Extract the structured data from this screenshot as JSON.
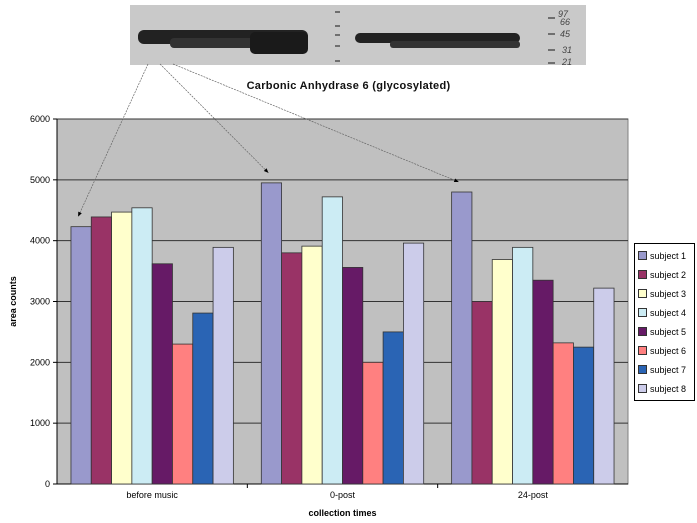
{
  "blot": {
    "marker_labels": [
      "97",
      "66",
      "45",
      "31",
      "21"
    ]
  },
  "chart_data": {
    "type": "bar",
    "title": "Carbonic Anhydrase 6 (glycosylated)",
    "xlabel": "collection times",
    "ylabel": "area counts",
    "ylim": [
      0,
      6000
    ],
    "yticks": [
      0,
      1000,
      2000,
      3000,
      4000,
      5000,
      6000
    ],
    "grid": true,
    "legend_position": "right",
    "categories": [
      "before music",
      "0-post",
      "24-post"
    ],
    "series": [
      {
        "name": "subject 1",
        "color": "#9999cc",
        "values": [
          4230,
          4950,
          4800
        ]
      },
      {
        "name": "subject 2",
        "color": "#993366",
        "values": [
          4390,
          3800,
          3000
        ]
      },
      {
        "name": "subject 3",
        "color": "#ffffcc",
        "values": [
          4470,
          3910,
          3690
        ]
      },
      {
        "name": "subject 4",
        "color": "#ccecf4",
        "values": [
          4540,
          4720,
          3890
        ]
      },
      {
        "name": "subject 5",
        "color": "#661a66",
        "values": [
          3620,
          3560,
          3350
        ]
      },
      {
        "name": "subject 6",
        "color": "#ff8080",
        "values": [
          2300,
          2000,
          2320
        ]
      },
      {
        "name": "subject 7",
        "color": "#2a64b4",
        "values": [
          2810,
          2500,
          2250
        ]
      },
      {
        "name": "subject 8",
        "color": "#ccccea",
        "values": [
          3890,
          3960,
          3220
        ]
      }
    ]
  }
}
